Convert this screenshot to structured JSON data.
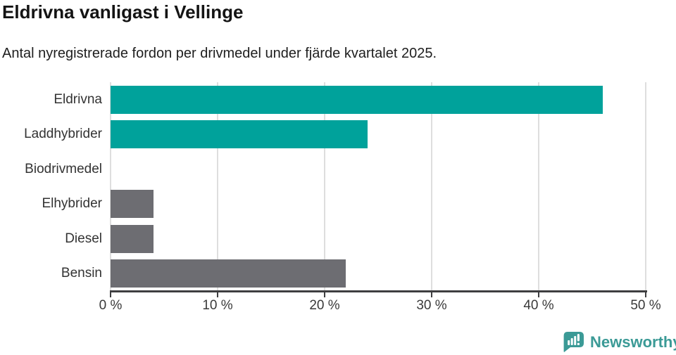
{
  "chart_data": {
    "type": "bar",
    "orientation": "horizontal",
    "title": "Eldrivna vanligast i Vellinge",
    "subtitle": "Antal nyregistrerade fordon per drivmedel under fjärde kvartalet 2025.",
    "categories": [
      "Eldrivna",
      "Laddhybrider",
      "Biodrivmedel",
      "Elhybrider",
      "Diesel",
      "Bensin"
    ],
    "values": [
      46,
      24,
      0,
      4,
      4,
      22
    ],
    "unit": "%",
    "bar_colors": [
      "#00a29b",
      "#00a29b",
      "#6d6d72",
      "#6d6d72",
      "#6d6d72",
      "#6d6d72"
    ],
    "xlim": [
      0,
      50
    ],
    "x_ticks": [
      0,
      10,
      20,
      30,
      40,
      50
    ],
    "x_tick_labels": [
      "0 %",
      "10 %",
      "20 %",
      "30 %",
      "40 %",
      "50 %"
    ],
    "grid": true,
    "legend": "none"
  },
  "colors": {
    "teal": "#00a29b",
    "gray": "#6d6d72",
    "gridline": "#dedede",
    "axis": "#3e3e40",
    "background": "#ffffff"
  },
  "branding": {
    "logo_text": "Newsworthy",
    "logo_color": "#3b9a96",
    "icon": "newsworthy-speech-bubble-bar-chart-icon",
    "icon_color": "#3b9a96"
  }
}
